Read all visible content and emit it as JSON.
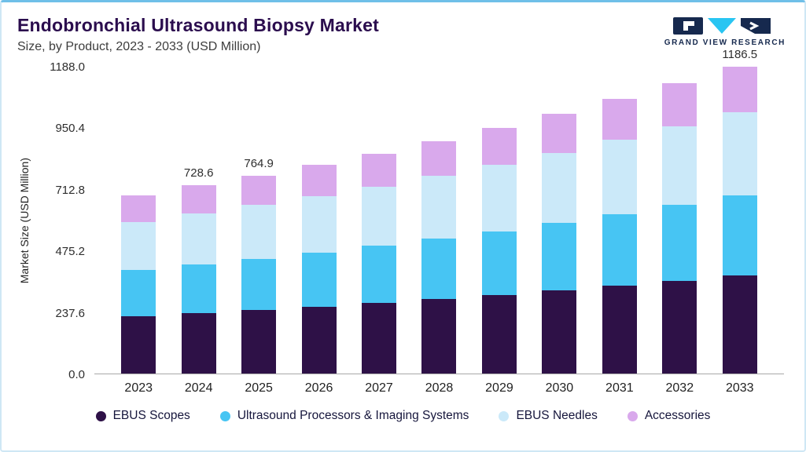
{
  "header": {
    "title": "Endobronchial Ultrasound Biopsy Market",
    "subtitle": "Size, by Product, 2023 - 2033 (USD Million)",
    "logo_text": "GRAND VIEW RESEARCH"
  },
  "chart_data": {
    "type": "bar",
    "stacked": true,
    "title": "Endobronchial Ultrasound Biopsy Market Size, by Product, 2023 - 2033 (USD Million)",
    "ylabel": "Market Size (USD Million)",
    "ylim": [
      0,
      1188.0
    ],
    "ytick_labels": [
      "0.0",
      "237.6",
      "475.2",
      "712.8",
      "950.4",
      "1188.0"
    ],
    "grid": false,
    "legend_position": "bottom",
    "categories": [
      "2023",
      "2024",
      "2025",
      "2026",
      "2027",
      "2028",
      "2029",
      "2030",
      "2031",
      "2032",
      "2033"
    ],
    "series": [
      {
        "name": "EBUS Scopes",
        "color": "#2e1147",
        "values": [
          220.2,
          233.2,
          244.8,
          257.9,
          272.0,
          287.0,
          303.4,
          321.0,
          339.5,
          359.0,
          379.7
        ]
      },
      {
        "name": "Ultrasound Processors & Imaging Systems",
        "color": "#47c5f3",
        "values": [
          178.9,
          189.4,
          198.9,
          209.6,
          221.0,
          233.2,
          246.5,
          260.8,
          275.9,
          291.7,
          308.5
        ]
      },
      {
        "name": "EBUS Needles",
        "color": "#cbe9f9",
        "values": [
          185.8,
          196.7,
          206.5,
          217.6,
          229.5,
          242.2,
          256.0,
          270.8,
          286.5,
          303.0,
          320.3
        ]
      },
      {
        "name": "Accessories",
        "color": "#d9a9ec",
        "values": [
          103.1,
          109.3,
          114.7,
          120.9,
          127.5,
          134.6,
          142.1,
          150.4,
          159.1,
          168.3,
          178.0
        ]
      }
    ],
    "totals": [
      688.0,
      728.6,
      764.9,
      806.0,
      850.0,
      897.0,
      948.0,
      1003.0,
      1061.0,
      1122.0,
      1186.5
    ],
    "bar_value_labels": [
      "",
      "728.6",
      "764.9",
      "",
      "",
      "",
      "",
      "",
      "",
      "",
      "1186.5"
    ]
  }
}
